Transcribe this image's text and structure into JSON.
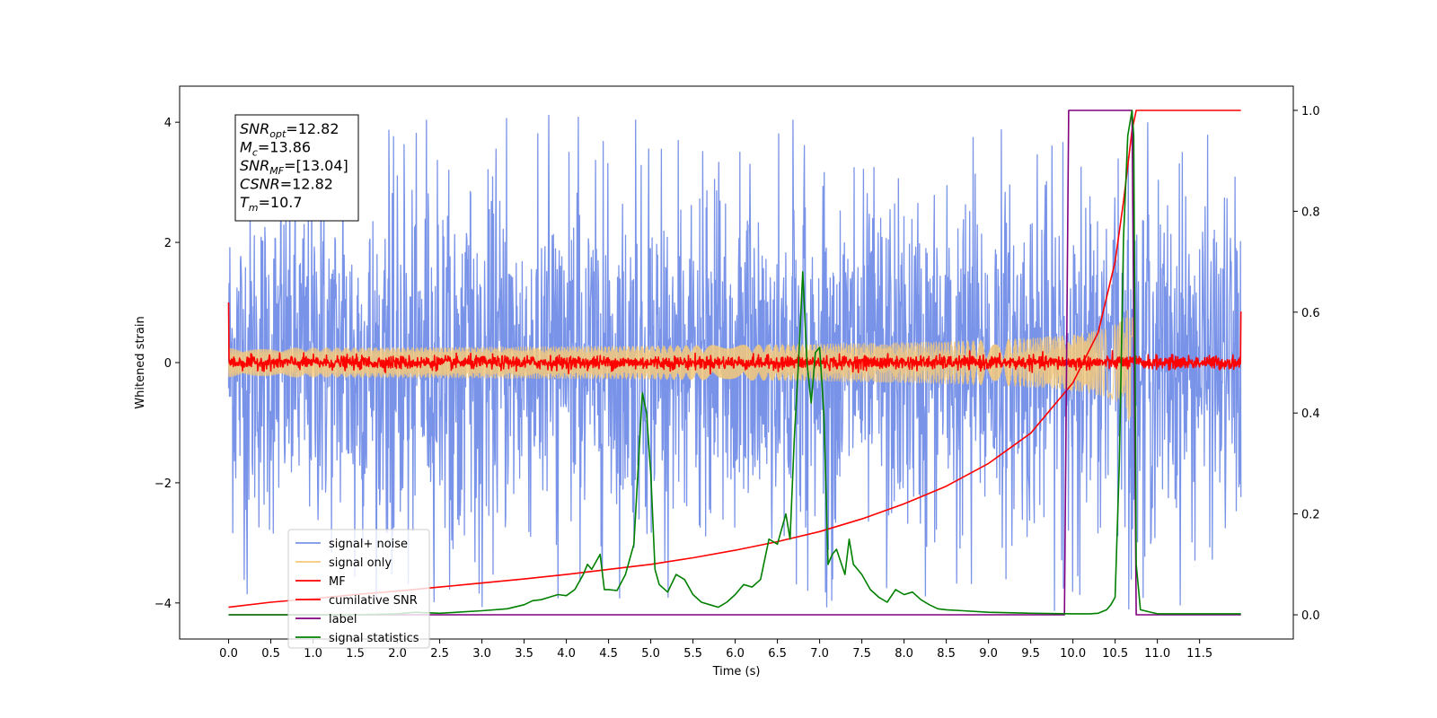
{
  "chart_data": {
    "type": "line",
    "xlabel": "Time (s)",
    "ylabel": "Whitened strain",
    "xlim": [
      -0.58,
      12.61
    ],
    "ylim": [
      -4.6,
      4.6
    ],
    "y2lim": [
      -0.048,
      1.048
    ],
    "x_ticks": [
      0.0,
      0.5,
      1.0,
      1.5,
      2.0,
      2.5,
      3.0,
      3.5,
      4.0,
      4.5,
      5.0,
      5.5,
      6.0,
      6.5,
      7.0,
      7.5,
      8.0,
      8.5,
      9.0,
      9.5,
      10.0,
      10.5,
      11.0,
      11.5
    ],
    "x_tick_labels": [
      "0.0",
      "0.5",
      "1.0",
      "1.5",
      "2.0",
      "2.5",
      "3.0",
      "3.5",
      "4.0",
      "4.5",
      "5.0",
      "5.5",
      "6.0",
      "6.5",
      "7.0",
      "7.5",
      "8.0",
      "8.5",
      "9.0",
      "9.5",
      "10.0",
      "10.5",
      "11.0",
      "11.5"
    ],
    "y_ticks": [
      -4,
      -2,
      0,
      2,
      4
    ],
    "y_tick_labels": [
      "−4",
      "−2",
      "0",
      "2",
      "4"
    ],
    "y2_ticks": [
      0.0,
      0.2,
      0.4,
      0.6,
      0.8,
      1.0
    ],
    "y2_tick_labels": [
      "0.0",
      "0.2",
      "0.4",
      "0.6",
      "0.8",
      "1.0"
    ],
    "grid": false,
    "legend_position": "bottom-left",
    "info_box": {
      "lines": [
        {
          "base": "SNR",
          "sub": "opt",
          "value": "=12.82"
        },
        {
          "base": "M",
          "sub": "c",
          "value": "=13.86"
        },
        {
          "base": "SNR",
          "sub": "MF",
          "value": "=[13.04]"
        },
        {
          "base": "CSNR",
          "sub": "",
          "value": "=12.82"
        },
        {
          "base": "T",
          "sub": "m",
          "value": "=10.7"
        }
      ]
    },
    "series": [
      {
        "name": "signal+ noise",
        "color": "#7993e8",
        "axis": "left",
        "kind": "noise",
        "x_range": [
          0.0,
          11.99
        ],
        "amplitude_typical": 2.5,
        "amplitude_max": 4.15
      },
      {
        "name": "signal only",
        "color": "#f5c97a",
        "axis": "left",
        "kind": "chirp",
        "x_range": [
          0.0,
          11.99
        ],
        "merger_time": 10.7,
        "peak_amplitude": 0.9
      },
      {
        "name": "MF",
        "color": "#ff0000",
        "axis": "left",
        "kind": "noise",
        "x_range": [
          0.0,
          11.99
        ],
        "amplitude_typical": 0.1,
        "endpoints": [
          1.0,
          0.85
        ]
      },
      {
        "name": "cumilative SNR",
        "color": "#ff0000",
        "axis": "right",
        "x": [
          0.0,
          0.5,
          1.0,
          1.5,
          2.0,
          2.5,
          3.0,
          3.5,
          4.0,
          4.5,
          5.0,
          5.5,
          6.0,
          6.5,
          7.0,
          7.5,
          8.0,
          8.5,
          9.0,
          9.5,
          10.0,
          10.3,
          10.5,
          10.6,
          10.7,
          10.75,
          11.99
        ],
        "values": [
          0.015,
          0.025,
          0.032,
          0.04,
          0.047,
          0.055,
          0.063,
          0.071,
          0.08,
          0.09,
          0.1,
          0.113,
          0.128,
          0.145,
          0.165,
          0.19,
          0.22,
          0.255,
          0.3,
          0.36,
          0.46,
          0.56,
          0.7,
          0.82,
          0.96,
          1.0,
          1.0
        ]
      },
      {
        "name": "label",
        "color": "#800080",
        "axis": "right",
        "x": [
          0.0,
          9.9,
          9.95,
          10.7,
          10.75,
          11.99
        ],
        "values": [
          0.0,
          0.0,
          1.0,
          1.0,
          0.0,
          0.0
        ]
      },
      {
        "name": "signal statistics",
        "color": "#008000",
        "axis": "right",
        "x": [
          0.0,
          0.5,
          1.0,
          1.5,
          2.0,
          2.2,
          2.5,
          3.0,
          3.3,
          3.5,
          3.6,
          3.7,
          3.8,
          3.9,
          4.0,
          4.1,
          4.2,
          4.25,
          4.3,
          4.4,
          4.45,
          4.5,
          4.6,
          4.7,
          4.8,
          4.9,
          4.95,
          5.0,
          5.05,
          5.1,
          5.2,
          5.3,
          5.4,
          5.5,
          5.6,
          5.7,
          5.8,
          5.9,
          6.0,
          6.1,
          6.2,
          6.3,
          6.4,
          6.5,
          6.6,
          6.65,
          6.7,
          6.75,
          6.8,
          6.85,
          6.9,
          6.95,
          7.0,
          7.05,
          7.1,
          7.15,
          7.2,
          7.3,
          7.35,
          7.4,
          7.45,
          7.5,
          7.6,
          7.7,
          7.8,
          7.9,
          8.0,
          8.1,
          8.2,
          8.3,
          8.4,
          8.5,
          8.7,
          9.0,
          9.5,
          10.0,
          10.2,
          10.3,
          10.4,
          10.45,
          10.5,
          10.55,
          10.6,
          10.65,
          10.7,
          10.72,
          10.75,
          10.8,
          11.0,
          11.99
        ],
        "values": [
          0.0,
          0.0,
          0.0,
          0.0,
          0.002,
          0.005,
          0.003,
          0.008,
          0.012,
          0.02,
          0.028,
          0.03,
          0.035,
          0.04,
          0.038,
          0.05,
          0.08,
          0.1,
          0.09,
          0.12,
          0.05,
          0.05,
          0.048,
          0.08,
          0.14,
          0.44,
          0.4,
          0.28,
          0.09,
          0.06,
          0.045,
          0.08,
          0.07,
          0.04,
          0.025,
          0.02,
          0.015,
          0.025,
          0.04,
          0.06,
          0.055,
          0.07,
          0.15,
          0.14,
          0.2,
          0.15,
          0.35,
          0.5,
          0.68,
          0.5,
          0.42,
          0.52,
          0.53,
          0.4,
          0.1,
          0.12,
          0.13,
          0.08,
          0.15,
          0.1,
          0.09,
          0.08,
          0.05,
          0.035,
          0.025,
          0.05,
          0.04,
          0.045,
          0.03,
          0.02,
          0.012,
          0.01,
          0.008,
          0.005,
          0.003,
          0.002,
          0.002,
          0.003,
          0.01,
          0.02,
          0.035,
          0.3,
          0.75,
          0.95,
          1.0,
          0.95,
          0.1,
          0.01,
          0.002,
          0.002
        ]
      }
    ]
  }
}
